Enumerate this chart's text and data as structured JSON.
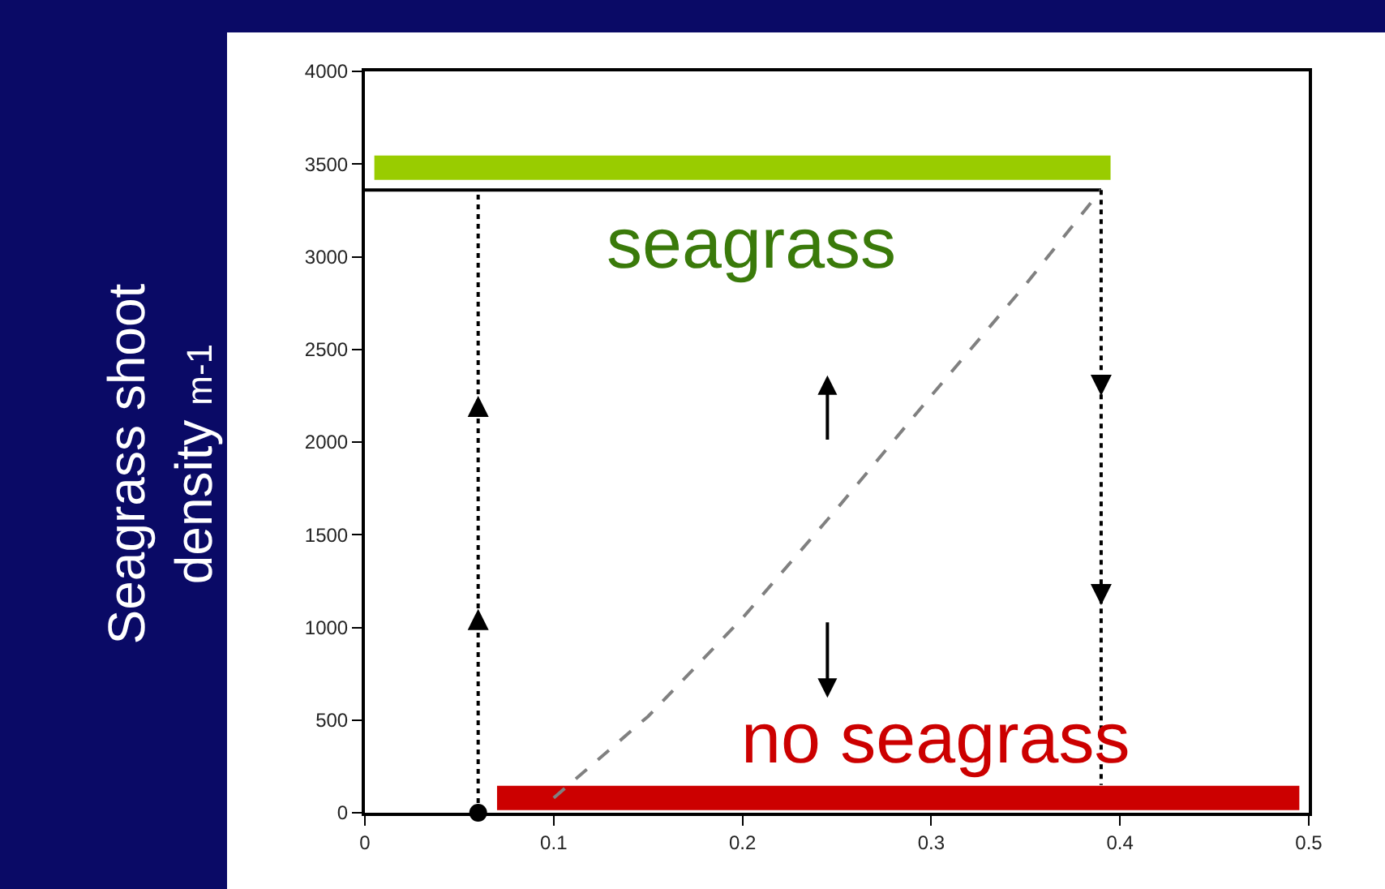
{
  "chart_data": {
    "type": "line",
    "ylabel": "Seagrass shoot\ndensity $_{m-1}$",
    "series": [
      {
        "color": "#99cc00",
        "x": [
          0.005,
          0.395
        ],
        "values": [
          3480,
          3480
        ]
      },
      {
        "color": "#cc0000",
        "x": [
          0.07,
          0.495
        ],
        "values": [
          80,
          80
        ]
      },
      {
        "color": "#000000",
        "x": [
          0,
          0.39
        ],
        "values": [
          3360,
          3360
        ],
        "line_style": "solid"
      },
      {
        "color": "#808080",
        "x": [
          0.1,
          0.15,
          0.2,
          0.25,
          0.3,
          0.35,
          0.39
        ],
        "values": [
          80,
          520,
          1050,
          1640,
          2250,
          2850,
          3360
        ],
        "line_style": "dashed"
      },
      {
        "color": "#000000",
        "x": [
          0.06,
          0.06,
          0.06,
          0.06
        ],
        "values": [
          0,
          1100,
          2250,
          3360
        ],
        "line_style": "dotted"
      },
      {
        "color": "#000000",
        "x": [
          0.39,
          0.39,
          0.39,
          0.39
        ],
        "values": [
          3360,
          2250,
          1120,
          150
        ],
        "line_style": "dotted"
      },
      {
        "type": "scatter",
        "color": "#000000",
        "x": [
          0.06
        ],
        "values": [
          0
        ],
        "marker": "circle"
      }
    ],
    "annotations": [
      "seagrass",
      "no seagrass"
    ],
    "xlim": [
      0,
      0.5
    ],
    "xticks": [
      0,
      0.1,
      0.2,
      0.3,
      0.4,
      0.5
    ],
    "ylim": [
      0,
      4000
    ],
    "yticks": [
      0,
      500,
      1000,
      1500,
      2000,
      2500,
      3000,
      3500,
      4000
    ]
  }
}
